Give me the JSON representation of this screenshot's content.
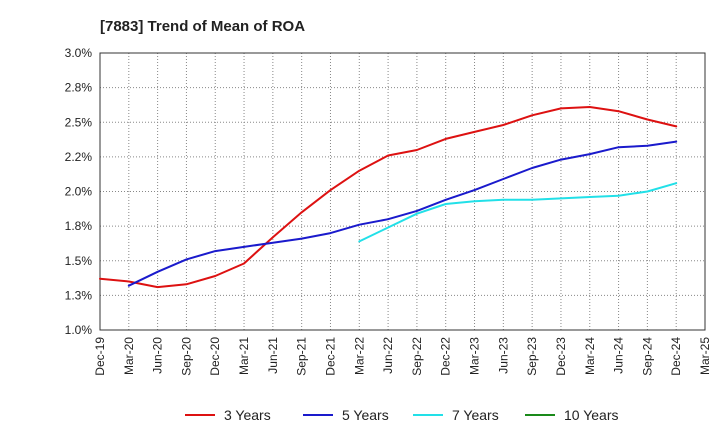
{
  "chart_data": {
    "type": "line",
    "title": "[7883]  Trend of Mean of ROA",
    "xlabel": "",
    "ylabel": "",
    "x_ticks": [
      "Dec-19",
      "Mar-20",
      "Jun-20",
      "Sep-20",
      "Dec-20",
      "Mar-21",
      "Jun-21",
      "Sep-21",
      "Dec-21",
      "Mar-22",
      "Jun-22",
      "Sep-22",
      "Dec-22",
      "Mar-23",
      "Jun-23",
      "Sep-23",
      "Dec-23",
      "Mar-24",
      "Jun-24",
      "Sep-24",
      "Dec-24",
      "Mar-25"
    ],
    "y_ticks": [
      "1.0%",
      "1.3%",
      "1.5%",
      "1.8%",
      "2.0%",
      "2.2%",
      "2.5%",
      "2.8%",
      "3.0%"
    ],
    "y_tick_values": [
      1.0,
      1.25,
      1.5,
      1.75,
      2.0,
      2.25,
      2.5,
      2.75,
      3.0
    ],
    "ylim": [
      1.0,
      3.0
    ],
    "grid": true,
    "legend_position": "bottom",
    "series": [
      {
        "name": "3 Years",
        "color": "#dd1111",
        "x": [
          "Dec-19",
          "Mar-20",
          "Jun-20",
          "Sep-20",
          "Dec-20",
          "Mar-21",
          "Jun-21",
          "Sep-21",
          "Dec-21",
          "Mar-22",
          "Jun-22",
          "Sep-22",
          "Dec-22",
          "Mar-23",
          "Jun-23",
          "Sep-23",
          "Dec-23",
          "Mar-24",
          "Jun-24",
          "Sep-24",
          "Dec-24"
        ],
        "values": [
          1.37,
          1.35,
          1.31,
          1.33,
          1.39,
          1.48,
          1.67,
          1.85,
          2.01,
          2.15,
          2.26,
          2.3,
          2.38,
          2.43,
          2.48,
          2.55,
          2.6,
          2.61,
          2.58,
          2.52,
          2.47
        ]
      },
      {
        "name": "5 Years",
        "color": "#1a1acc",
        "x": [
          "Mar-20",
          "Jun-20",
          "Sep-20",
          "Dec-20",
          "Mar-21",
          "Jun-21",
          "Sep-21",
          "Dec-21",
          "Mar-22",
          "Jun-22",
          "Sep-22",
          "Dec-22",
          "Mar-23",
          "Jun-23",
          "Sep-23",
          "Dec-23",
          "Mar-24",
          "Jun-24",
          "Sep-24",
          "Dec-24"
        ],
        "values": [
          1.32,
          1.42,
          1.51,
          1.57,
          1.6,
          1.63,
          1.66,
          1.7,
          1.76,
          1.8,
          1.86,
          1.94,
          2.01,
          2.09,
          2.17,
          2.23,
          2.27,
          2.32,
          2.33,
          2.36
        ]
      },
      {
        "name": "7 Years",
        "color": "#22e0e8",
        "x": [
          "Mar-22",
          "Jun-22",
          "Sep-22",
          "Dec-22",
          "Mar-23",
          "Jun-23",
          "Sep-23",
          "Dec-23",
          "Mar-24",
          "Jun-24",
          "Sep-24",
          "Dec-24"
        ],
        "values": [
          1.64,
          1.74,
          1.84,
          1.91,
          1.93,
          1.94,
          1.94,
          1.95,
          1.96,
          1.97,
          2.0,
          2.06
        ]
      },
      {
        "name": "10 Years",
        "color": "#1a8a1a",
        "x": [],
        "values": []
      }
    ]
  }
}
